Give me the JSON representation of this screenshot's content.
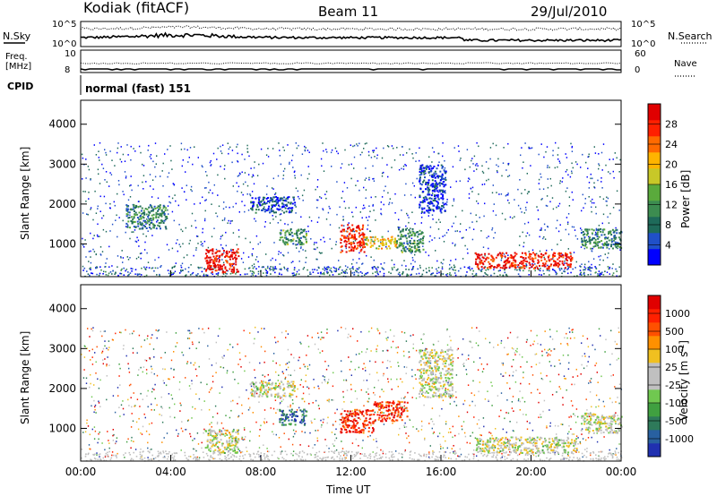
{
  "header": {
    "station": "Kodiak (fitACF)",
    "beam": "Beam 11",
    "date": "29/Jul/2010"
  },
  "chart_data": [
    {
      "type": "line",
      "panel": "noise",
      "ylabel_left": "N.Sky",
      "ylabel_right": "N.Search",
      "left_ticks": [
        "10^5",
        "10^0"
      ],
      "right_ticks": [
        "10^5",
        "10^0"
      ],
      "series": [
        {
          "name": "N.Sky",
          "style": "solid"
        },
        {
          "name": "N.Search",
          "style": "dotted"
        }
      ]
    },
    {
      "type": "line",
      "panel": "frequency",
      "ylabel_left": "Freq. [MHz]",
      "ylabel_right": "Nave",
      "left_ticks": [
        "10",
        "8"
      ],
      "right_ticks": [
        "60",
        "0"
      ],
      "series": [
        {
          "name": "Nave",
          "style": "dotted"
        }
      ]
    },
    {
      "type": "table",
      "panel": "cpid",
      "label": "CPID",
      "value": "normal (fast) 151"
    },
    {
      "type": "heatmap",
      "panel": "power",
      "ylabel": "Slant Range [km]",
      "yticks": [
        "1000",
        "2000",
        "3000",
        "4000"
      ],
      "ylim": [
        180,
        4600
      ],
      "xlim": [
        0,
        24
      ],
      "colorbar": {
        "label": "Power [dB]",
        "ticks": [
          "28",
          "24",
          "20",
          "16",
          "12",
          "8",
          "4"
        ],
        "colors": [
          "#0000ff",
          "#2050c8",
          "#1e6a5a",
          "#3c8c50",
          "#5aaa3c",
          "#c8c828",
          "#ffb400",
          "#ff6a00",
          "#ff2000",
          "#e00000"
        ]
      },
      "regions": [
        {
          "t0": 5.5,
          "t1": 7.0,
          "r0": 300,
          "r1": 900,
          "level": 0.95
        },
        {
          "t0": 11.5,
          "t1": 12.6,
          "r0": 800,
          "r1": 1500,
          "level": 0.9
        },
        {
          "t0": 12.6,
          "t1": 14.0,
          "r0": 900,
          "r1": 1200,
          "level": 0.6
        },
        {
          "t0": 17.5,
          "t1": 21.8,
          "r0": 400,
          "r1": 800,
          "level": 0.9
        },
        {
          "t0": 8.8,
          "t1": 10.0,
          "r0": 1000,
          "r1": 1400,
          "level": 0.35
        },
        {
          "t0": 7.5,
          "t1": 9.5,
          "r0": 1800,
          "r1": 2200,
          "level": 0.15
        },
        {
          "t0": 15.0,
          "t1": 16.2,
          "r0": 1800,
          "r1": 3000,
          "level": 0.12
        },
        {
          "t0": 14.0,
          "t1": 15.2,
          "r0": 800,
          "r1": 1400,
          "level": 0.35
        },
        {
          "t0": 2.0,
          "t1": 3.8,
          "r0": 1400,
          "r1": 2000,
          "level": 0.3
        },
        {
          "t0": 22.2,
          "t1": 24.0,
          "r0": 900,
          "r1": 1400,
          "level": 0.3
        }
      ]
    },
    {
      "type": "heatmap",
      "panel": "velocity",
      "ylabel": "Slant Range [km]",
      "yticks": [
        "1000",
        "2000",
        "3000",
        "4000"
      ],
      "ylim": [
        180,
        4600
      ],
      "xlim": [
        0,
        24
      ],
      "xticks": [
        "00:00",
        "04:00",
        "08:00",
        "12:00",
        "16:00",
        "20:00",
        "00:00"
      ],
      "xlabel": "Time UT",
      "colorbar": {
        "label": "Velocity [m s^-1]",
        "ticks": [
          "1000",
          "500",
          "100",
          "25",
          "-25",
          "-100",
          "-500",
          "-1000"
        ],
        "colors": [
          "#2030b0",
          "#2860a0",
          "#2e7a5a",
          "#40a040",
          "#70c850",
          "#c0c0c0",
          "#c0c0c0",
          "#f0c020",
          "#ff9000",
          "#ff5000",
          "#ff2000",
          "#e00000"
        ]
      },
      "regions": [
        {
          "t0": 5.5,
          "t1": 7.0,
          "r0": 400,
          "r1": 1000,
          "level": 0.5
        },
        {
          "t0": 7.5,
          "t1": 9.5,
          "r0": 1800,
          "r1": 2200,
          "level": 0.5
        },
        {
          "t0": 11.5,
          "t1": 13.0,
          "r0": 900,
          "r1": 1500,
          "level": 0.9
        },
        {
          "t0": 13.0,
          "t1": 14.5,
          "r0": 1200,
          "r1": 1700,
          "level": 0.85
        },
        {
          "t0": 15.0,
          "t1": 16.5,
          "r0": 1800,
          "r1": 3000,
          "level": 0.5
        },
        {
          "t0": 17.5,
          "t1": 22.0,
          "r0": 400,
          "r1": 800,
          "level": 0.5
        },
        {
          "t0": 8.8,
          "t1": 10.0,
          "r0": 1100,
          "r1": 1500,
          "level": 0.15
        },
        {
          "t0": 22.2,
          "t1": 24.0,
          "r0": 900,
          "r1": 1400,
          "level": 0.5
        }
      ]
    }
  ]
}
